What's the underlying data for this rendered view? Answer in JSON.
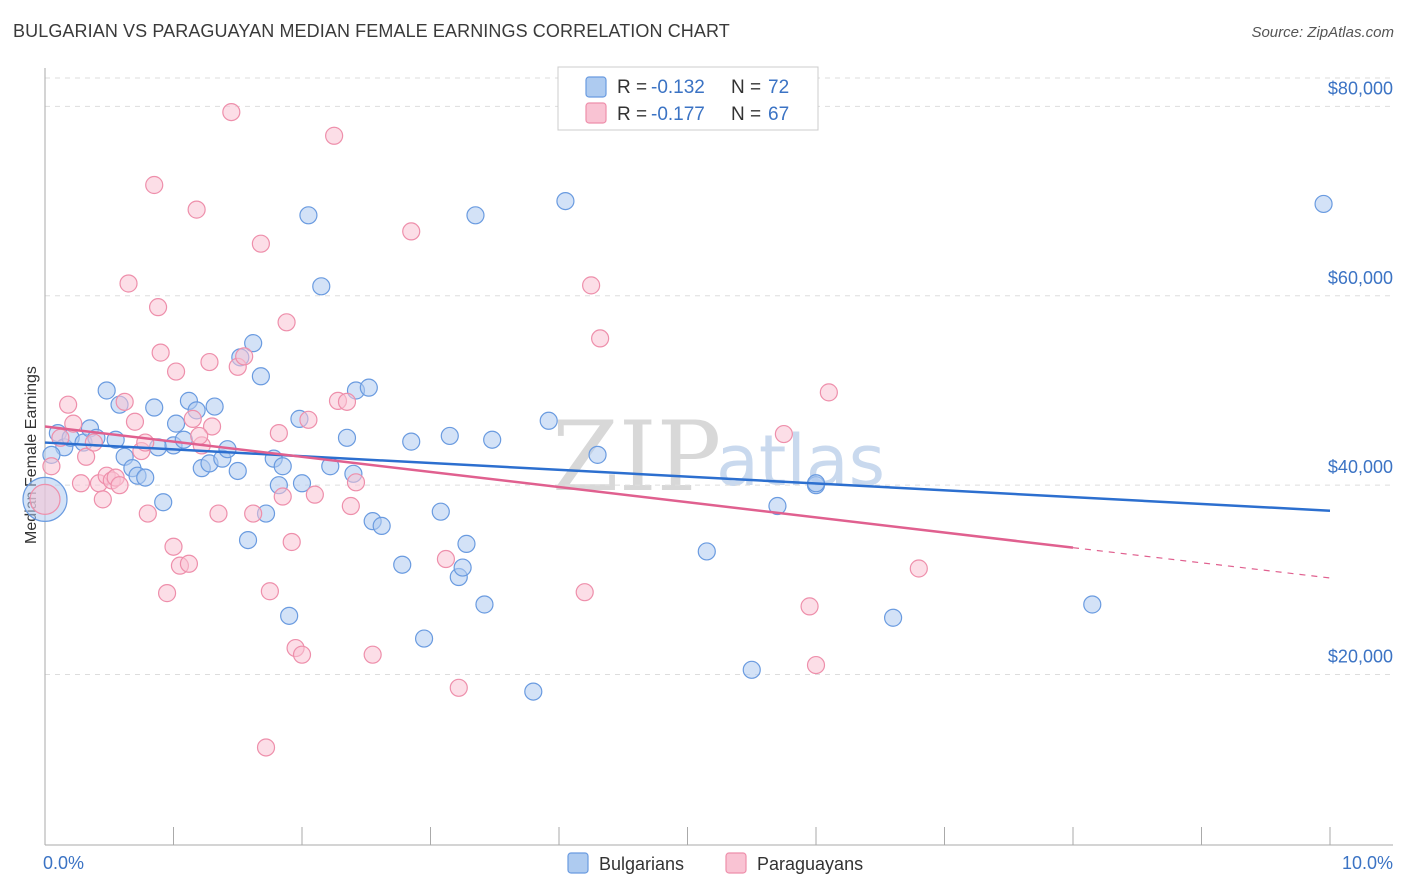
{
  "title": "BULGARIAN VS PARAGUAYAN MEDIAN FEMALE EARNINGS CORRELATION CHART",
  "source": "Source: ZipAtlas.com",
  "watermark": {
    "zip": "ZIP",
    "atlas": "atlas"
  },
  "legend": {
    "r_label": "R =",
    "n_label": "N =",
    "entries": [
      {
        "r": "-0.132",
        "n": "72"
      },
      {
        "r": "-0.177",
        "n": "67"
      }
    ]
  },
  "colors": {
    "bulgarian_fill": "#aecbf0",
    "bulgarian_stroke": "#6a9be0",
    "bulgarian_line": "#2c6fcf",
    "paraguayan_fill": "#f9c3d3",
    "paraguayan_stroke": "#ee8fab",
    "paraguayan_line": "#e0608f",
    "axis_text": "#3b73c4",
    "grid": "#dddddd"
  },
  "chart_data": {
    "type": "scatter",
    "title": "BULGARIAN VS PARAGUAYAN MEDIAN FEMALE EARNINGS CORRELATION CHART",
    "xlabel": "",
    "ylabel": "Median Female Earnings",
    "xlim": [
      0,
      10
    ],
    "ylim": [
      2000,
      83000
    ],
    "x_tick_labels": [
      "0.0%",
      "10.0%"
    ],
    "y_ticks": [
      20000,
      40000,
      60000,
      80000
    ],
    "y_tick_labels": [
      "$20,000",
      "$40,000",
      "$60,000",
      "$80,000"
    ],
    "series": [
      {
        "name": "Bulgarians",
        "trend": {
          "x": [
            0,
            10
          ],
          "y": [
            44500,
            37300
          ],
          "dashed_from": null
        },
        "points": [
          {
            "x": 0.0,
            "y": 38500,
            "r": 22
          },
          {
            "x": 0.1,
            "y": 45500
          },
          {
            "x": 0.15,
            "y": 44000
          },
          {
            "x": 0.2,
            "y": 45000
          },
          {
            "x": 0.3,
            "y": 44500
          },
          {
            "x": 0.35,
            "y": 46000
          },
          {
            "x": 0.4,
            "y": 45000
          },
          {
            "x": 0.48,
            "y": 50000
          },
          {
            "x": 0.55,
            "y": 44800
          },
          {
            "x": 0.58,
            "y": 48500
          },
          {
            "x": 0.62,
            "y": 43000
          },
          {
            "x": 0.68,
            "y": 41800
          },
          {
            "x": 0.72,
            "y": 41000
          },
          {
            "x": 0.78,
            "y": 40800
          },
          {
            "x": 0.85,
            "y": 48200
          },
          {
            "x": 0.88,
            "y": 44000
          },
          {
            "x": 0.92,
            "y": 38200
          },
          {
            "x": 1.0,
            "y": 44200
          },
          {
            "x": 1.02,
            "y": 46500
          },
          {
            "x": 1.08,
            "y": 44800
          },
          {
            "x": 1.12,
            "y": 48900
          },
          {
            "x": 1.18,
            "y": 47900
          },
          {
            "x": 1.22,
            "y": 41800
          },
          {
            "x": 1.28,
            "y": 42300
          },
          {
            "x": 1.32,
            "y": 48300
          },
          {
            "x": 1.38,
            "y": 42800
          },
          {
            "x": 1.42,
            "y": 43800
          },
          {
            "x": 1.5,
            "y": 41500
          },
          {
            "x": 1.52,
            "y": 53500
          },
          {
            "x": 1.58,
            "y": 34200
          },
          {
            "x": 1.62,
            "y": 55000
          },
          {
            "x": 1.68,
            "y": 51500
          },
          {
            "x": 1.72,
            "y": 37000
          },
          {
            "x": 1.78,
            "y": 42800
          },
          {
            "x": 1.82,
            "y": 40000
          },
          {
            "x": 1.85,
            "y": 42000
          },
          {
            "x": 1.9,
            "y": 26200
          },
          {
            "x": 1.98,
            "y": 47000
          },
          {
            "x": 2.0,
            "y": 40200
          },
          {
            "x": 2.05,
            "y": 68500
          },
          {
            "x": 2.15,
            "y": 61000
          },
          {
            "x": 2.22,
            "y": 42000
          },
          {
            "x": 2.35,
            "y": 45000
          },
          {
            "x": 2.4,
            "y": 41200
          },
          {
            "x": 2.42,
            "y": 50000
          },
          {
            "x": 2.52,
            "y": 50300
          },
          {
            "x": 2.55,
            "y": 36200
          },
          {
            "x": 2.62,
            "y": 35700
          },
          {
            "x": 2.78,
            "y": 31600
          },
          {
            "x": 2.85,
            "y": 44600
          },
          {
            "x": 2.95,
            "y": 23800
          },
          {
            "x": 3.08,
            "y": 37200
          },
          {
            "x": 3.15,
            "y": 45200
          },
          {
            "x": 3.22,
            "y": 30300
          },
          {
            "x": 3.25,
            "y": 31300
          },
          {
            "x": 3.28,
            "y": 33800
          },
          {
            "x": 3.35,
            "y": 68500
          },
          {
            "x": 3.42,
            "y": 27400
          },
          {
            "x": 3.48,
            "y": 44800
          },
          {
            "x": 3.8,
            "y": 18200
          },
          {
            "x": 3.92,
            "y": 46800
          },
          {
            "x": 4.05,
            "y": 70000
          },
          {
            "x": 4.3,
            "y": 43200
          },
          {
            "x": 5.15,
            "y": 33000
          },
          {
            "x": 5.5,
            "y": 20500
          },
          {
            "x": 5.7,
            "y": 37800
          },
          {
            "x": 6.0,
            "y": 40000
          },
          {
            "x": 6.0,
            "y": 40200
          },
          {
            "x": 6.6,
            "y": 26000
          },
          {
            "x": 8.15,
            "y": 27400
          },
          {
            "x": 9.95,
            "y": 69700
          },
          {
            "x": 0.05,
            "y": 43200
          }
        ]
      },
      {
        "name": "Paraguayans",
        "trend": {
          "x": [
            0,
            10
          ],
          "y": [
            46200,
            30200
          ],
          "dashed_from": 8.0
        },
        "points": [
          {
            "x": 0.0,
            "y": 38500,
            "r": 15
          },
          {
            "x": 0.05,
            "y": 42000
          },
          {
            "x": 0.12,
            "y": 45000
          },
          {
            "x": 0.18,
            "y": 48500
          },
          {
            "x": 0.22,
            "y": 46500
          },
          {
            "x": 0.28,
            "y": 40200
          },
          {
            "x": 0.32,
            "y": 43000
          },
          {
            "x": 0.38,
            "y": 44500
          },
          {
            "x": 0.42,
            "y": 40200
          },
          {
            "x": 0.45,
            "y": 38500
          },
          {
            "x": 0.48,
            "y": 41000
          },
          {
            "x": 0.52,
            "y": 40500
          },
          {
            "x": 0.55,
            "y": 40800
          },
          {
            "x": 0.58,
            "y": 40000
          },
          {
            "x": 0.62,
            "y": 48800
          },
          {
            "x": 0.65,
            "y": 61300
          },
          {
            "x": 0.7,
            "y": 46700
          },
          {
            "x": 0.75,
            "y": 43600
          },
          {
            "x": 0.78,
            "y": 44500
          },
          {
            "x": 0.8,
            "y": 37000
          },
          {
            "x": 0.85,
            "y": 71700
          },
          {
            "x": 0.88,
            "y": 58800
          },
          {
            "x": 0.9,
            "y": 54000
          },
          {
            "x": 0.95,
            "y": 28600
          },
          {
            "x": 1.0,
            "y": 33500
          },
          {
            "x": 1.02,
            "y": 52000
          },
          {
            "x": 1.05,
            "y": 31500
          },
          {
            "x": 1.12,
            "y": 31700
          },
          {
            "x": 1.15,
            "y": 47000
          },
          {
            "x": 1.18,
            "y": 69100
          },
          {
            "x": 1.22,
            "y": 44200
          },
          {
            "x": 1.28,
            "y": 53000
          },
          {
            "x": 1.3,
            "y": 46200
          },
          {
            "x": 1.35,
            "y": 37000
          },
          {
            "x": 1.45,
            "y": 79400
          },
          {
            "x": 1.5,
            "y": 52500
          },
          {
            "x": 1.55,
            "y": 53600
          },
          {
            "x": 1.62,
            "y": 37000
          },
          {
            "x": 1.68,
            "y": 65500
          },
          {
            "x": 1.72,
            "y": 12300
          },
          {
            "x": 1.75,
            "y": 28800
          },
          {
            "x": 1.82,
            "y": 45500
          },
          {
            "x": 1.85,
            "y": 38800
          },
          {
            "x": 1.88,
            "y": 57200
          },
          {
            "x": 1.92,
            "y": 34000
          },
          {
            "x": 1.95,
            "y": 22800
          },
          {
            "x": 2.0,
            "y": 22100
          },
          {
            "x": 2.05,
            "y": 46900
          },
          {
            "x": 2.1,
            "y": 39000
          },
          {
            "x": 2.25,
            "y": 76900
          },
          {
            "x": 2.28,
            "y": 48900
          },
          {
            "x": 2.35,
            "y": 48800
          },
          {
            "x": 2.38,
            "y": 37800
          },
          {
            "x": 2.42,
            "y": 40300
          },
          {
            "x": 2.55,
            "y": 22100
          },
          {
            "x": 2.85,
            "y": 66800
          },
          {
            "x": 3.12,
            "y": 32200
          },
          {
            "x": 3.22,
            "y": 18600
          },
          {
            "x": 4.2,
            "y": 28700
          },
          {
            "x": 4.25,
            "y": 61100
          },
          {
            "x": 4.32,
            "y": 55500
          },
          {
            "x": 5.75,
            "y": 45400
          },
          {
            "x": 5.95,
            "y": 27200
          },
          {
            "x": 6.0,
            "y": 21000
          },
          {
            "x": 6.1,
            "y": 49800
          },
          {
            "x": 6.8,
            "y": 31200
          },
          {
            "x": 1.2,
            "y": 45200
          }
        ]
      }
    ]
  },
  "bottom_legend": [
    "Bulgarians",
    "Paraguayans"
  ]
}
